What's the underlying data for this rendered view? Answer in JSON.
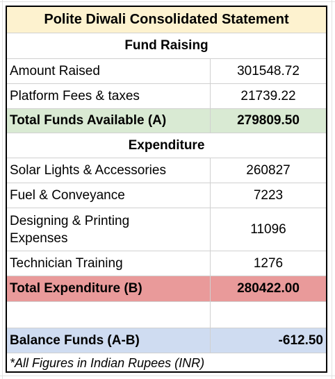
{
  "title": "Polite Diwali Consolidated Statement",
  "fund_raising": {
    "header": "Fund Raising",
    "rows": [
      {
        "label": "Amount Raised",
        "value": "301548.72"
      },
      {
        "label": "Platform Fees & taxes",
        "value": "21739.22"
      }
    ],
    "total": {
      "label": "Total Funds Available (A)",
      "value": "279809.50"
    }
  },
  "expenditure": {
    "header": "Expenditure",
    "rows": [
      {
        "label": "Solar Lights & Accessories",
        "value": "260827"
      },
      {
        "label": "Fuel & Conveyance",
        "value": "7223"
      },
      {
        "label": "Designing & Printing Expenses",
        "value": "11096"
      },
      {
        "label": "Technician Training",
        "value": "1276"
      }
    ],
    "total": {
      "label": "Total Expenditure (B)",
      "value": "280422.00"
    }
  },
  "balance": {
    "label": "Balance Funds (A-B)",
    "value": "-612.50"
  },
  "note": "*All Figures in Indian Rupees (INR)",
  "colors": {
    "title_bg": "#fdf2cf",
    "total_funds_bg": "#d9ead3",
    "total_expenditure_bg": "#e99a9a",
    "balance_bg": "#cfdcf1"
  }
}
